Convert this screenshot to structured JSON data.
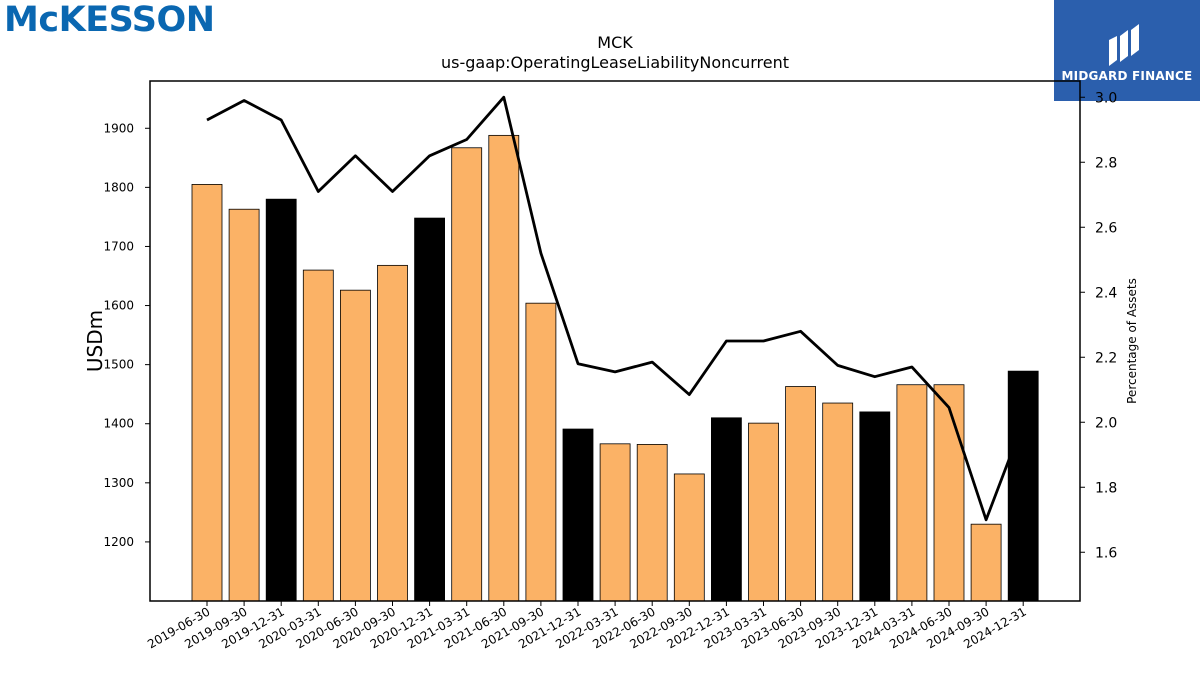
{
  "logos": {
    "left_brand": "McKESSON",
    "right_brand": "MIDGARD FINANCE"
  },
  "chart_data": {
    "type": "bar",
    "title": "MCK",
    "subtitle": "us-gaap:OperatingLeaseLiabilityNoncurrent",
    "ylabel": "USDm",
    "y2label": "Percentage of Assets",
    "ylim": [
      1100,
      1980
    ],
    "y2lim": [
      1.45,
      3.05
    ],
    "yticks": [
      1200,
      1300,
      1400,
      1500,
      1600,
      1700,
      1800,
      1900
    ],
    "y2ticks": [
      1.6,
      1.8,
      2.0,
      2.2,
      2.4,
      2.6,
      2.8,
      3.0
    ],
    "categories": [
      "2019-06-30",
      "2019-09-30",
      "2019-12-31",
      "2020-03-31",
      "2020-06-30",
      "2020-09-30",
      "2020-12-31",
      "2021-03-31",
      "2021-06-30",
      "2021-09-30",
      "2021-12-31",
      "2022-03-31",
      "2022-06-30",
      "2022-09-30",
      "2022-12-31",
      "2023-03-31",
      "2023-06-30",
      "2023-09-30",
      "2023-12-31",
      "2024-03-31",
      "2024-06-30",
      "2024-09-30",
      "2024-12-31"
    ],
    "series": [
      {
        "kind": "bar",
        "values": [
          1805,
          1763,
          1780,
          1660,
          1626,
          1668,
          1748,
          1867,
          1888,
          1604,
          1391,
          1366,
          1365,
          1315,
          1410,
          1401,
          1463,
          1435,
          1420,
          1466,
          1466,
          1230,
          1489
        ],
        "highlight": [
          false,
          false,
          true,
          false,
          false,
          false,
          true,
          false,
          false,
          false,
          true,
          false,
          false,
          false,
          true,
          false,
          false,
          false,
          true,
          false,
          false,
          false,
          true
        ]
      },
      {
        "kind": "line",
        "axis": "right",
        "values": [
          2.93,
          2.99,
          2.93,
          2.71,
          2.82,
          2.71,
          2.82,
          2.87,
          3.0,
          2.52,
          2.18,
          2.155,
          2.185,
          2.085,
          2.25,
          2.25,
          2.28,
          2.175,
          2.14,
          2.17,
          2.045,
          1.7,
          2.0
        ]
      }
    ],
    "colors": {
      "bar": "#fbb266",
      "bar_highlight": "#000000",
      "line": "#000000"
    }
  }
}
